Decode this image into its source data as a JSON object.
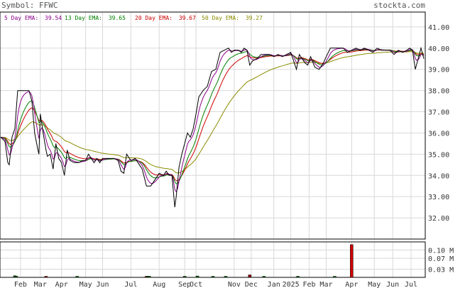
{
  "chart_data": {
    "type": "line",
    "title": "Symbol: FFWC",
    "watermark": "stockta.com",
    "grid": true,
    "ylim": [
      31.0,
      41.7
    ],
    "vol_ylim": [
      0,
      0.13
    ],
    "legend": [
      {
        "label": "5 Day EMA:",
        "value": "39.54",
        "color": "#8b008b"
      },
      {
        "label": "13 Day EMA:",
        "value": "39.65",
        "color": "#008000"
      },
      {
        "label": "20 Day EMA:",
        "value": "39.67",
        "color": "#cc0000"
      },
      {
        "label": "50 Day EMA:",
        "value": "39.27",
        "color": "#8b8b00"
      }
    ],
    "y_ticks": [
      "32.00",
      "33.00",
      "34.00",
      "35.00",
      "36.00",
      "37.00",
      "38.00",
      "39.00",
      "40.00",
      "41.00"
    ],
    "vol_ticks": [
      "0.03 M",
      "0.07 M",
      "0.10 M"
    ],
    "vol_tick_values": [
      0.03,
      0.07,
      0.1
    ],
    "x_labels": [
      "Feb",
      "Mar",
      "Apr",
      "May",
      "Jun",
      "Jul",
      "Aug",
      "Sep",
      "Oct",
      "Nov",
      "Dec",
      "Jan",
      "2025",
      "Feb",
      "Mar",
      "Apr",
      "May",
      "Jun",
      "Jul"
    ],
    "x_label_index": [
      14,
      28,
      43,
      60,
      72,
      92,
      112,
      130,
      138,
      165,
      177,
      193,
      205,
      218,
      230,
      248,
      264,
      277,
      290
    ],
    "n_points": 300,
    "price_key": [
      [
        0,
        35.8
      ],
      [
        3,
        35.6
      ],
      [
        5,
        34.6
      ],
      [
        6,
        34.5
      ],
      [
        8,
        35.8
      ],
      [
        10,
        36.2
      ],
      [
        12,
        38.0
      ],
      [
        20,
        38.0
      ],
      [
        22,
        37.5
      ],
      [
        24,
        36.0
      ],
      [
        26,
        35.3
      ],
      [
        27,
        35.0
      ],
      [
        28,
        36.9
      ],
      [
        30,
        36.0
      ],
      [
        32,
        35.2
      ],
      [
        33,
        34.9
      ],
      [
        35,
        35.0
      ],
      [
        37,
        34.3
      ],
      [
        39,
        35.5
      ],
      [
        41,
        34.8
      ],
      [
        43,
        34.6
      ],
      [
        45,
        34.0
      ],
      [
        47,
        35.2
      ],
      [
        49,
        34.7
      ],
      [
        52,
        34.6
      ],
      [
        55,
        34.6
      ],
      [
        58,
        34.7
      ],
      [
        60,
        34.7
      ],
      [
        62,
        35.0
      ],
      [
        64,
        34.8
      ],
      [
        66,
        34.6
      ],
      [
        68,
        34.8
      ],
      [
        70,
        34.6
      ],
      [
        72,
        34.8
      ],
      [
        75,
        34.8
      ],
      [
        78,
        34.8
      ],
      [
        80,
        34.8
      ],
      [
        83,
        34.7
      ],
      [
        85,
        34.2
      ],
      [
        87,
        34.1
      ],
      [
        89,
        35.0
      ],
      [
        92,
        34.7
      ],
      [
        95,
        34.8
      ],
      [
        98,
        34.5
      ],
      [
        100,
        34.3
      ],
      [
        103,
        33.5
      ],
      [
        106,
        33.5
      ],
      [
        109,
        33.8
      ],
      [
        112,
        34.1
      ],
      [
        115,
        34.0
      ],
      [
        117,
        34.2
      ],
      [
        119,
        34.0
      ],
      [
        121,
        34.0
      ],
      [
        123,
        32.5
      ],
      [
        124,
        33.0
      ],
      [
        126,
        34.4
      ],
      [
        128,
        35.0
      ],
      [
        130,
        35.5
      ],
      [
        132,
        36.0
      ],
      [
        134,
        35.8
      ],
      [
        136,
        36.2
      ],
      [
        138,
        36.9
      ],
      [
        140,
        37.7
      ],
      [
        143,
        38.0
      ],
      [
        146,
        38.2
      ],
      [
        149,
        38.9
      ],
      [
        152,
        39.0
      ],
      [
        155,
        39.8
      ],
      [
        158,
        39.9
      ],
      [
        161,
        40.0
      ],
      [
        163,
        39.8
      ],
      [
        165,
        39.9
      ],
      [
        168,
        39.9
      ],
      [
        170,
        39.8
      ],
      [
        172,
        40.0
      ],
      [
        174,
        39.9
      ],
      [
        176,
        39.2
      ],
      [
        178,
        39.4
      ],
      [
        181,
        39.5
      ],
      [
        184,
        39.7
      ],
      [
        187,
        39.7
      ],
      [
        190,
        39.7
      ],
      [
        193,
        39.6
      ],
      [
        196,
        39.7
      ],
      [
        199,
        39.6
      ],
      [
        202,
        39.7
      ],
      [
        205,
        39.8
      ],
      [
        207,
        39.4
      ],
      [
        209,
        39.0
      ],
      [
        211,
        39.7
      ],
      [
        213,
        39.5
      ],
      [
        215,
        39.3
      ],
      [
        217,
        39.2
      ],
      [
        219,
        39.6
      ],
      [
        222,
        39.1
      ],
      [
        225,
        39.0
      ],
      [
        228,
        39.3
      ],
      [
        230,
        39.6
      ],
      [
        233,
        40.0
      ],
      [
        236,
        40.0
      ],
      [
        239,
        40.0
      ],
      [
        242,
        40.0
      ],
      [
        245,
        39.8
      ],
      [
        248,
        39.9
      ],
      [
        251,
        40.0
      ],
      [
        254,
        39.9
      ],
      [
        257,
        40.0
      ],
      [
        260,
        39.9
      ],
      [
        263,
        39.8
      ],
      [
        266,
        40.0
      ],
      [
        269,
        39.9
      ],
      [
        272,
        39.9
      ],
      [
        275,
        39.9
      ],
      [
        278,
        39.7
      ],
      [
        281,
        39.9
      ],
      [
        284,
        39.8
      ],
      [
        287,
        39.9
      ],
      [
        289,
        40.0
      ],
      [
        291,
        39.9
      ],
      [
        293,
        39.0
      ],
      [
        295,
        39.5
      ],
      [
        297,
        40.0
      ],
      [
        299,
        39.5
      ]
    ],
    "volume": [
      [
        10,
        0.006
      ],
      [
        11,
        0.004
      ],
      [
        32,
        0.003
      ],
      [
        54,
        0.004
      ],
      [
        103,
        0.003
      ],
      [
        104,
        0.004
      ],
      [
        105,
        0.003
      ],
      [
        130,
        0.004
      ],
      [
        139,
        0.005
      ],
      [
        150,
        0.003
      ],
      [
        159,
        0.004
      ],
      [
        176,
        0.009
      ],
      [
        186,
        0.002
      ],
      [
        210,
        0.004
      ],
      [
        236,
        0.003
      ],
      [
        248,
        0.12
      ]
    ]
  }
}
